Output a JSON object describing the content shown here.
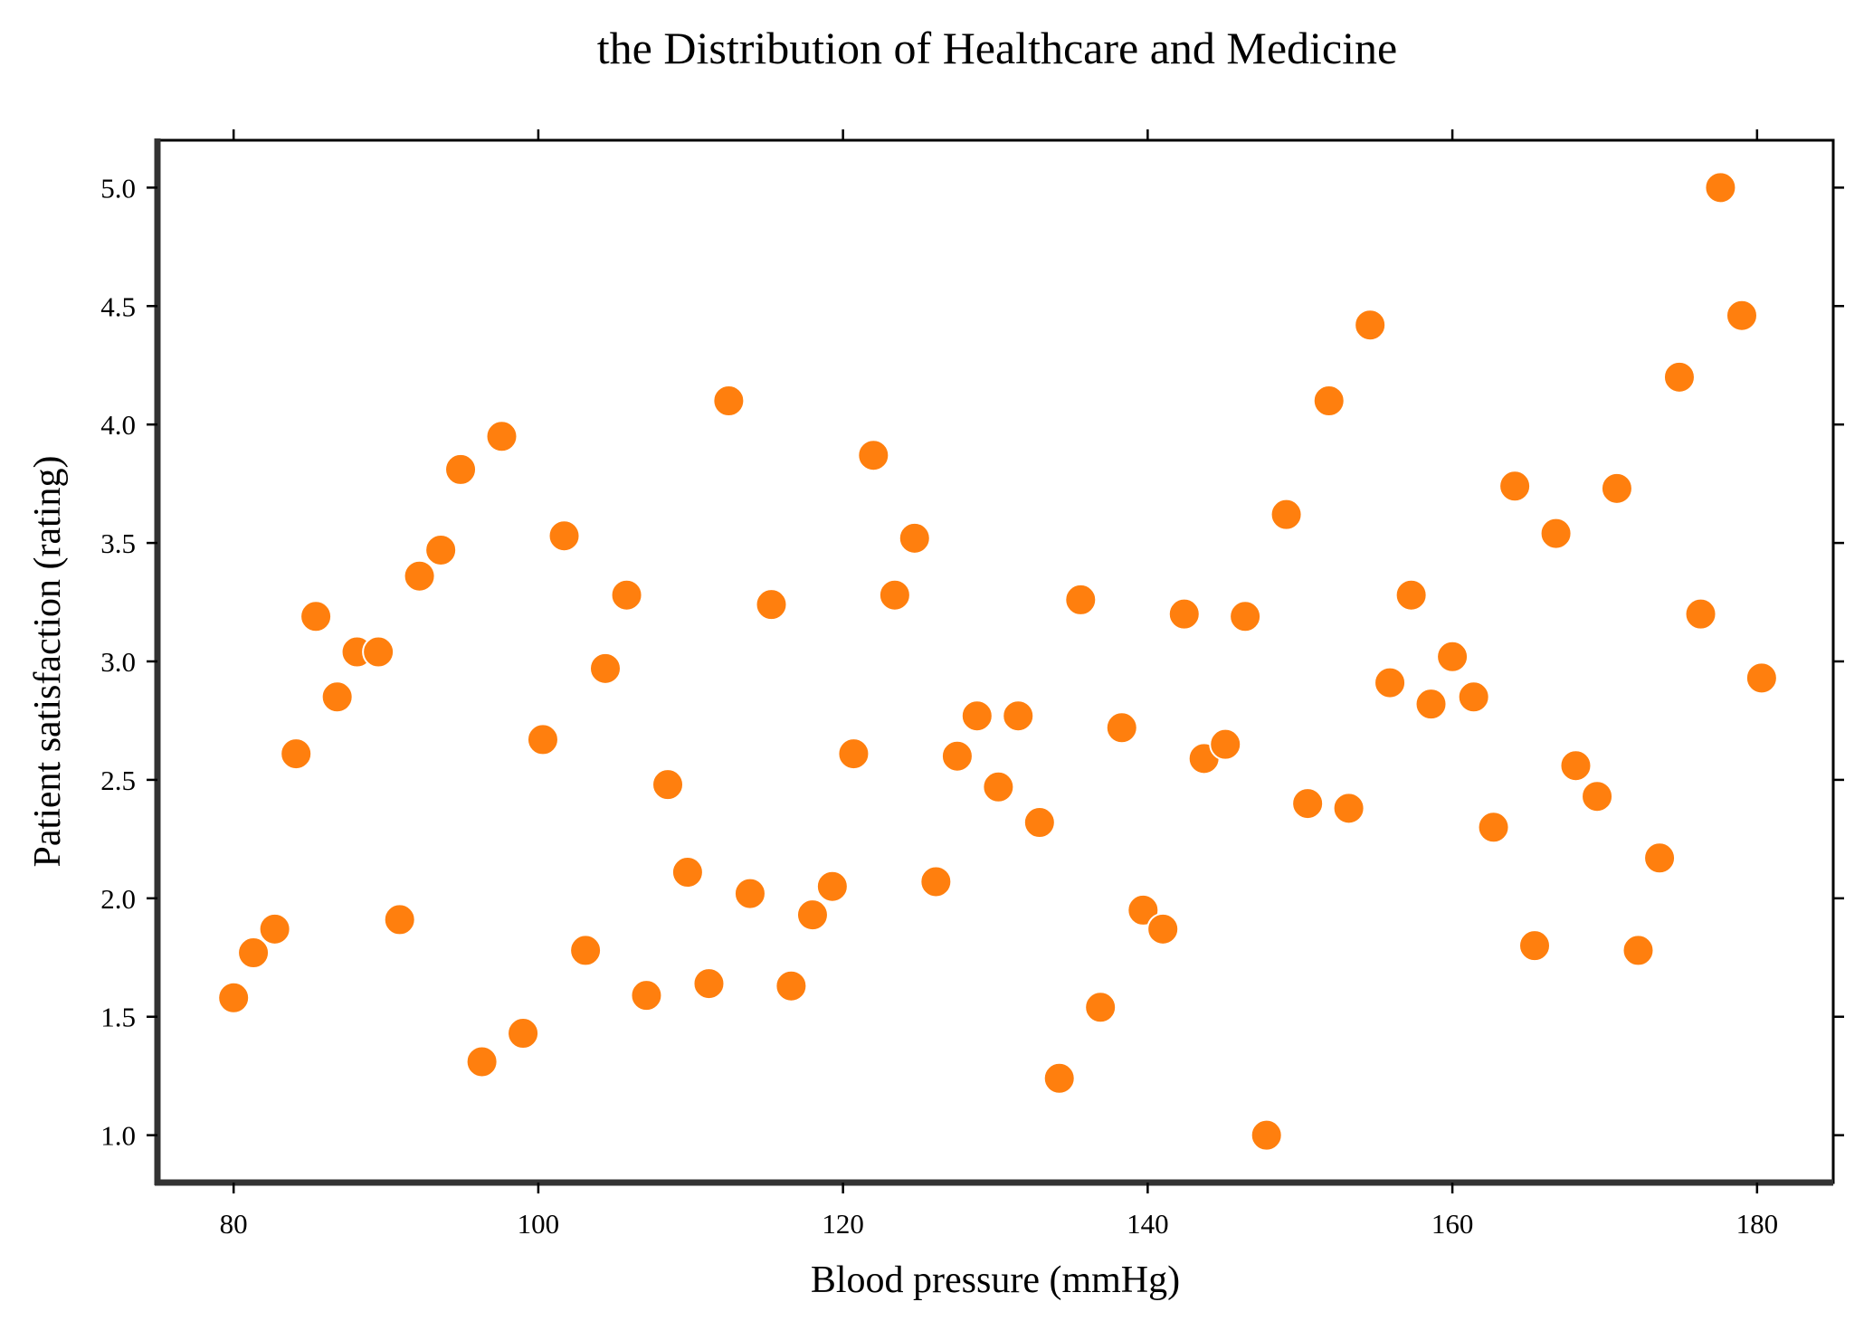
{
  "chart_data": {
    "type": "scatter",
    "title": "the Distribution of Healthcare and Medicine",
    "xlabel": "Blood pressure (mmHg)",
    "ylabel": "Patient satisfaction (rating)",
    "xlim": [
      75,
      185
    ],
    "ylim": [
      0.8,
      5.2
    ],
    "xticks": [
      80,
      100,
      120,
      140,
      160,
      180
    ],
    "xtick_labels": [
      "80",
      "100",
      "120",
      "140",
      "160",
      "180"
    ],
    "yticks": [
      1.0,
      1.5,
      2.0,
      2.5,
      3.0,
      3.5,
      4.0,
      4.5,
      5.0
    ],
    "ytick_labels": [
      "1.0",
      "1.5",
      "2.0",
      "2.5",
      "3.0",
      "3.5",
      "4.0",
      "4.5",
      "5.0"
    ],
    "grid": false,
    "marker_color": "#ff7f0e",
    "marker_edge_color": "#ffffff",
    "points": [
      {
        "x": 80.0,
        "y": 1.58
      },
      {
        "x": 81.3,
        "y": 1.77
      },
      {
        "x": 82.7,
        "y": 1.87
      },
      {
        "x": 84.1,
        "y": 2.61
      },
      {
        "x": 85.4,
        "y": 3.19
      },
      {
        "x": 86.8,
        "y": 2.85
      },
      {
        "x": 88.1,
        "y": 3.04
      },
      {
        "x": 89.5,
        "y": 3.04
      },
      {
        "x": 90.9,
        "y": 1.91
      },
      {
        "x": 92.2,
        "y": 3.36
      },
      {
        "x": 93.6,
        "y": 3.47
      },
      {
        "x": 94.9,
        "y": 3.81
      },
      {
        "x": 96.3,
        "y": 1.31
      },
      {
        "x": 97.6,
        "y": 3.95
      },
      {
        "x": 99.0,
        "y": 1.43
      },
      {
        "x": 100.3,
        "y": 2.67
      },
      {
        "x": 101.7,
        "y": 3.53
      },
      {
        "x": 103.1,
        "y": 1.78
      },
      {
        "x": 104.4,
        "y": 2.97
      },
      {
        "x": 105.8,
        "y": 3.28
      },
      {
        "x": 107.1,
        "y": 1.59
      },
      {
        "x": 108.5,
        "y": 2.48
      },
      {
        "x": 109.8,
        "y": 2.11
      },
      {
        "x": 111.2,
        "y": 1.64
      },
      {
        "x": 112.5,
        "y": 4.1
      },
      {
        "x": 113.9,
        "y": 2.02
      },
      {
        "x": 115.3,
        "y": 3.24
      },
      {
        "x": 116.6,
        "y": 1.63
      },
      {
        "x": 118.0,
        "y": 1.93
      },
      {
        "x": 119.3,
        "y": 2.05
      },
      {
        "x": 120.7,
        "y": 2.61
      },
      {
        "x": 122.0,
        "y": 3.87
      },
      {
        "x": 123.4,
        "y": 3.28
      },
      {
        "x": 124.7,
        "y": 3.52
      },
      {
        "x": 126.1,
        "y": 2.07
      },
      {
        "x": 127.5,
        "y": 2.6
      },
      {
        "x": 128.8,
        "y": 2.77
      },
      {
        "x": 130.2,
        "y": 2.47
      },
      {
        "x": 131.5,
        "y": 2.77
      },
      {
        "x": 132.9,
        "y": 2.32
      },
      {
        "x": 134.2,
        "y": 1.24
      },
      {
        "x": 135.6,
        "y": 3.26
      },
      {
        "x": 136.9,
        "y": 1.54
      },
      {
        "x": 138.3,
        "y": 2.72
      },
      {
        "x": 139.7,
        "y": 1.95
      },
      {
        "x": 141.0,
        "y": 1.87
      },
      {
        "x": 142.4,
        "y": 3.2
      },
      {
        "x": 143.7,
        "y": 2.59
      },
      {
        "x": 145.1,
        "y": 2.65
      },
      {
        "x": 146.4,
        "y": 3.19
      },
      {
        "x": 147.8,
        "y": 1.0
      },
      {
        "x": 149.1,
        "y": 3.62
      },
      {
        "x": 150.5,
        "y": 2.4
      },
      {
        "x": 151.9,
        "y": 4.1
      },
      {
        "x": 153.2,
        "y": 2.38
      },
      {
        "x": 154.6,
        "y": 4.42
      },
      {
        "x": 155.9,
        "y": 2.91
      },
      {
        "x": 157.3,
        "y": 3.28
      },
      {
        "x": 158.6,
        "y": 2.82
      },
      {
        "x": 160.0,
        "y": 3.02
      },
      {
        "x": 161.4,
        "y": 2.85
      },
      {
        "x": 162.7,
        "y": 2.3
      },
      {
        "x": 164.1,
        "y": 3.74
      },
      {
        "x": 165.4,
        "y": 1.8
      },
      {
        "x": 166.8,
        "y": 3.54
      },
      {
        "x": 168.1,
        "y": 2.56
      },
      {
        "x": 169.5,
        "y": 2.43
      },
      {
        "x": 170.8,
        "y": 3.73
      },
      {
        "x": 172.2,
        "y": 1.78
      },
      {
        "x": 173.6,
        "y": 2.17
      },
      {
        "x": 174.9,
        "y": 4.2
      },
      {
        "x": 176.3,
        "y": 3.2
      },
      {
        "x": 177.6,
        "y": 5.0
      },
      {
        "x": 179.0,
        "y": 4.46
      },
      {
        "x": 180.3,
        "y": 2.93
      }
    ]
  }
}
